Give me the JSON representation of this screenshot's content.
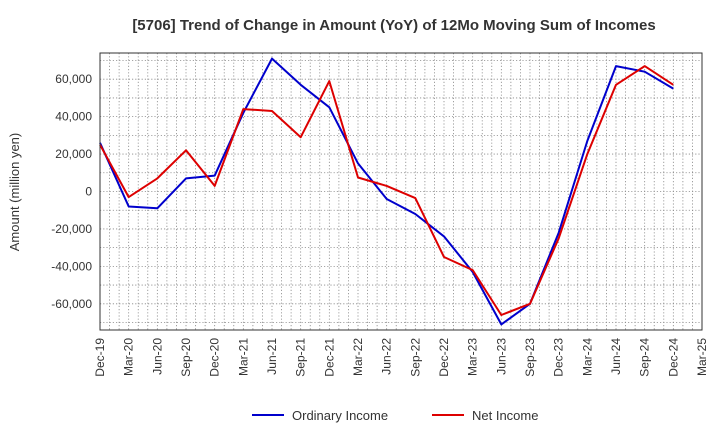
{
  "chart_data": {
    "type": "line",
    "title": "[5706]  Trend of Change in Amount (YoY) of 12Mo Moving Sum of Incomes",
    "ylabel": "Amount (million yen)",
    "xlabel": "",
    "ylim": [
      -74000,
      74000
    ],
    "yticks": [
      60000,
      40000,
      20000,
      0,
      -20000,
      -40000,
      -60000
    ],
    "ytick_labels": [
      "60,000",
      "40,000",
      "20,000",
      "0",
      "-20,000",
      "-40,000",
      "-60,000"
    ],
    "xtick_labels": [
      "Dec-19",
      "Mar-20",
      "Jun-20",
      "Sep-20",
      "Dec-20",
      "Mar-21",
      "Jun-21",
      "Sep-21",
      "Dec-21",
      "Mar-22",
      "Jun-22",
      "Sep-22",
      "Dec-22",
      "Mar-23",
      "Jun-23",
      "Sep-23",
      "Dec-23",
      "Mar-24",
      "Jun-24",
      "Sep-24",
      "Dec-24",
      "Mar-25"
    ],
    "grid": true,
    "legend_position": "bottom",
    "series": [
      {
        "name": "Ordinary Income",
        "color": "#0000cc",
        "values": [
          26000,
          -8000,
          -9000,
          7000,
          8500,
          42000,
          71000,
          57000,
          45000,
          15000,
          -4000,
          -12000,
          -24000,
          -43000,
          -71000,
          -60000,
          -22000,
          27000,
          67000,
          64000,
          55000
        ]
      },
      {
        "name": "Net Income",
        "color": "#dd0000",
        "values": [
          25000,
          -3000,
          7000,
          22000,
          3000,
          44000,
          43000,
          29000,
          59000,
          7500,
          3000,
          -3500,
          -35000,
          -42000,
          -66000,
          -60000,
          -25000,
          20000,
          57000,
          67000,
          57000
        ]
      }
    ]
  }
}
